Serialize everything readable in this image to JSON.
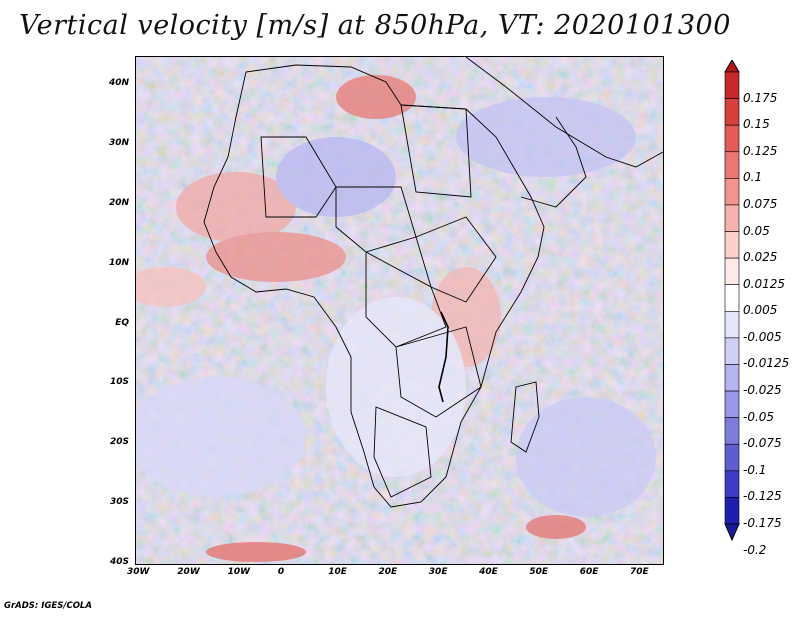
{
  "title": "Vertical velocity [m/s] at 850hPa, VT: 2020101300",
  "footer": "GrADS: IGES/COLA",
  "lat_ticks": [
    "40N",
    "30N",
    "20N",
    "10N",
    "EQ",
    "10S",
    "20S",
    "30S",
    "40S"
  ],
  "lon_ticks": [
    "30W",
    "20W",
    "10W",
    "0",
    "10E",
    "20E",
    "30E",
    "40E",
    "50E",
    "60E",
    "70E"
  ],
  "legend": {
    "labels": [
      "0.175",
      "0.15",
      "0.125",
      "0.1",
      "0.075",
      "0.05",
      "0.025",
      "0.0125",
      "0.005",
      "-0.005",
      "-0.0125",
      "-0.025",
      "-0.05",
      "-0.075",
      "-0.1",
      "-0.125",
      "-0.175",
      "-0.2"
    ],
    "colors": [
      "#b8141e",
      "#c8282c",
      "#d8403e",
      "#e45a56",
      "#ec7670",
      "#f2948c",
      "#f6b2ac",
      "#fad0cc",
      "#fde9e7",
      "#ffffff",
      "#e6e6fb",
      "#cfcff6",
      "#b4b4f0",
      "#9898e8",
      "#7c7cde",
      "#5e5ed2",
      "#3c3cc6",
      "#1e1eb0",
      "#1a1aa0"
    ]
  }
}
